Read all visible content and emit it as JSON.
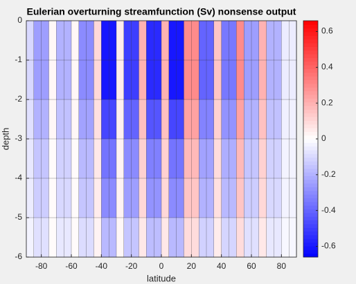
{
  "chart_data": {
    "type": "heatmap",
    "title": "Eulerian overturning streamfunction (Sv) nonsense output",
    "x_label": "latitude",
    "y_label": "depth",
    "xlim": [
      -90,
      90
    ],
    "ylim": [
      -6,
      0
    ],
    "xticks": [
      -80,
      -60,
      -40,
      -20,
      0,
      20,
      40,
      60,
      80
    ],
    "yticks": [
      -6,
      -5,
      -4,
      -3,
      -2,
      -1,
      0
    ],
    "clim": [
      -0.66,
      0.66
    ],
    "cticks": [
      -0.6,
      -0.4,
      -0.2,
      0,
      0.2,
      0.4,
      0.6
    ],
    "colormap": [
      "#0000ff",
      "#ffffff",
      "#ff0000"
    ],
    "x": [
      -87.5,
      -82.5,
      -77.5,
      -72.5,
      -67.5,
      -62.5,
      -57.5,
      -52.5,
      -47.5,
      -42.5,
      -37.5,
      -32.5,
      -27.5,
      -22.5,
      -17.5,
      -12.5,
      -7.5,
      -2.5,
      2.5,
      7.5,
      12.5,
      17.5,
      22.5,
      27.5,
      32.5,
      37.5,
      42.5,
      47.5,
      52.5,
      57.5,
      62.5,
      67.5,
      72.5,
      77.5,
      82.5,
      87.5
    ],
    "y": [
      -0.5,
      -1.5,
      -2.5,
      -3.5,
      -4.5,
      -5.5
    ],
    "z": [
      [
        -0.1,
        -0.25,
        -0.25,
        0.02,
        -0.2,
        -0.2,
        0.02,
        -0.3,
        -0.3,
        0.1,
        -0.6,
        -0.6,
        0.05,
        -0.5,
        -0.5,
        0.2,
        -0.55,
        -0.55,
        0.2,
        -0.6,
        -0.6,
        0.3,
        0.3,
        -0.4,
        -0.4,
        0.15,
        -0.35,
        -0.35,
        0.3,
        -0.25,
        -0.25,
        0.2,
        -0.2,
        -0.2,
        -0.05,
        -0.05
      ],
      [
        -0.1,
        -0.25,
        -0.25,
        0.02,
        -0.2,
        -0.2,
        0.02,
        -0.3,
        -0.3,
        0.1,
        -0.6,
        -0.6,
        0.05,
        -0.5,
        -0.5,
        0.2,
        -0.55,
        -0.55,
        0.2,
        -0.6,
        -0.6,
        0.3,
        0.3,
        -0.4,
        -0.4,
        0.15,
        -0.35,
        -0.35,
        0.3,
        -0.25,
        -0.25,
        0.2,
        -0.2,
        -0.2,
        -0.05,
        -0.05
      ],
      [
        -0.08,
        -0.2,
        -0.2,
        0.02,
        -0.16,
        -0.16,
        0.02,
        -0.24,
        -0.24,
        0.08,
        -0.48,
        -0.48,
        0.04,
        -0.4,
        -0.4,
        0.16,
        -0.44,
        -0.44,
        0.16,
        -0.48,
        -0.48,
        0.24,
        0.24,
        -0.32,
        -0.32,
        0.12,
        -0.28,
        -0.28,
        0.24,
        -0.2,
        -0.2,
        0.16,
        -0.16,
        -0.16,
        -0.04,
        -0.04
      ],
      [
        -0.06,
        -0.15,
        -0.15,
        0.01,
        -0.12,
        -0.12,
        0.01,
        -0.18,
        -0.18,
        0.06,
        -0.36,
        -0.36,
        0.03,
        -0.3,
        -0.3,
        0.12,
        -0.33,
        -0.33,
        0.12,
        -0.36,
        -0.36,
        0.18,
        0.18,
        -0.24,
        -0.24,
        0.09,
        -0.21,
        -0.21,
        0.18,
        -0.15,
        -0.15,
        0.12,
        -0.12,
        -0.12,
        -0.03,
        -0.03
      ],
      [
        -0.05,
        -0.13,
        -0.13,
        0.01,
        -0.1,
        -0.1,
        0.01,
        -0.15,
        -0.15,
        0.05,
        -0.3,
        -0.3,
        0.03,
        -0.25,
        -0.25,
        0.1,
        -0.28,
        -0.28,
        0.1,
        -0.3,
        -0.3,
        0.15,
        0.15,
        -0.2,
        -0.2,
        0.08,
        -0.18,
        -0.18,
        0.15,
        -0.13,
        -0.13,
        0.1,
        -0.1,
        -0.1,
        -0.03,
        -0.03
      ],
      [
        -0.03,
        -0.08,
        -0.08,
        0.01,
        -0.06,
        -0.06,
        0.01,
        -0.09,
        -0.09,
        0.03,
        -0.18,
        -0.18,
        0.02,
        -0.15,
        -0.15,
        0.06,
        -0.17,
        -0.17,
        0.06,
        -0.18,
        -0.18,
        0.09,
        0.09,
        -0.12,
        -0.12,
        0.05,
        -0.11,
        -0.11,
        0.09,
        -0.08,
        -0.08,
        0.06,
        -0.06,
        -0.06,
        -0.02,
        -0.02
      ]
    ]
  }
}
